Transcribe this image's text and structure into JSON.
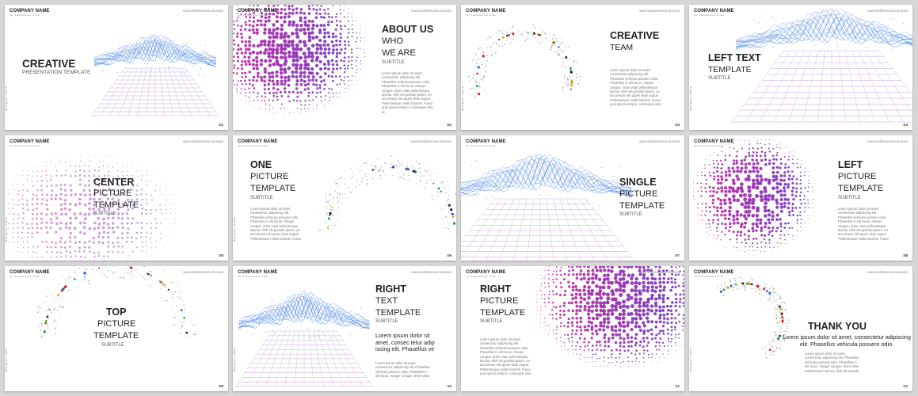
{
  "common": {
    "company": "COMPANY NAME",
    "tagline": "pro presentation slide",
    "website": "www.websitename.domain",
    "designer": "designer name"
  },
  "colors": {
    "accent_blue": "#2f7fd8",
    "accent_purple": "#7b2fbf",
    "accent_magenta": "#c2188f",
    "text_dark": "#222222"
  },
  "body": "Lorem ipsum dolor sit amet, consectetur adipiscing elit. Phasellus vehicula posuere odio. Phasellus in elit lacus. Integer congue, dolor vitae pellentesque lacinia, nibh elit gravida ipsum, eu accumsan nisl quam vitae augue. Pellentesque mollis lobortis. Fusce quis ipsum tempor, consequat odio at.",
  "slides": [
    {
      "title_lines": [
        "CREATIVE"
      ],
      "subtitle": "PRESENTATION TEMPLATE",
      "number": ":01"
    },
    {
      "title_lines": [
        "ABOUT US",
        "WHO",
        "WE ARE"
      ],
      "subtitle": "SUBTITLE",
      "number": ":02"
    },
    {
      "title_lines": [
        "CREATIVE",
        "TEAM"
      ],
      "subtitle": "",
      "number": ":03"
    },
    {
      "title_lines": [
        "LEFT TEXT",
        "TEMPLATE"
      ],
      "subtitle": "SUBTITLE",
      "number": ":04"
    },
    {
      "title_lines": [
        "CENTER",
        "PICTURE",
        "TEMPLATE"
      ],
      "subtitle": "SUBTITLE",
      "number": ":05"
    },
    {
      "title_lines": [
        "ONE",
        "PICTURE",
        "TEMPLATE"
      ],
      "subtitle": "SUBTITLE",
      "number": ":06"
    },
    {
      "title_lines": [
        "SINGLE",
        "PICTURE",
        "TEMPLATE"
      ],
      "subtitle": "SUBTITLE",
      "number": ":07"
    },
    {
      "title_lines": [
        "LEFT",
        "PICTURE",
        "TEMPLATE"
      ],
      "subtitle": "SUBTITLE",
      "number": ":08"
    },
    {
      "title_lines": [
        "TOP",
        "PICTURE",
        "TEMPLATE"
      ],
      "subtitle": "SUBTITLE",
      "number": ":09"
    },
    {
      "title_lines": [
        "RIGHT",
        "TEXT",
        "TEMPLATE"
      ],
      "subtitle": "SUBTITLE",
      "lead": "Lorem ipsum dolor sit amet, consec tetur adip iscing elit. Phasellus ve",
      "number": ":10"
    },
    {
      "title_lines": [
        "RIGHT",
        "PICTURE",
        "TEMPLATE"
      ],
      "subtitle": "SUBTITLE",
      "number": ":11"
    },
    {
      "title_lines": [
        "THANK YOU"
      ],
      "subtitle": "",
      "lead": "Lorem ipsum dolor sit amet, consectetur adipiscing elit. Phasellus vehicula posuere odio.",
      "number": ":12"
    }
  ]
}
